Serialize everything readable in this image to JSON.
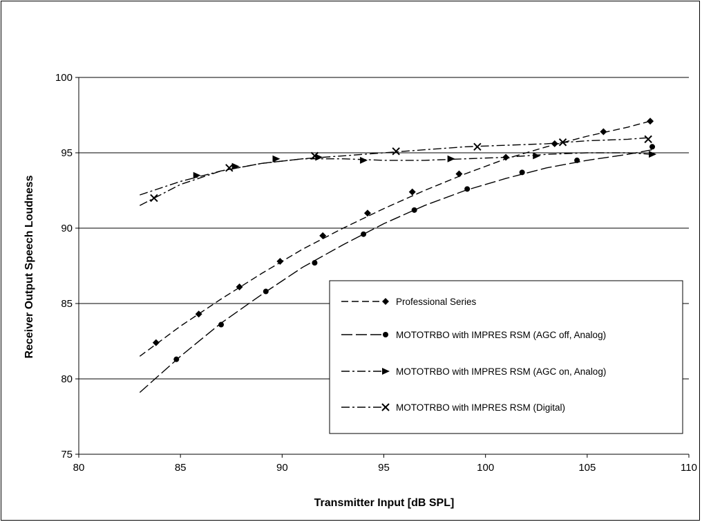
{
  "chart_data": {
    "type": "line",
    "title": "",
    "xlabel": "Transmitter Input [dB SPL]",
    "ylabel": "Receiver Output Speech Loudness",
    "xlim": [
      80,
      110
    ],
    "ylim": [
      75,
      100
    ],
    "xticks": [
      "80",
      "85",
      "90",
      "95",
      "100",
      "105",
      "110"
    ],
    "yticks": [
      "75",
      "80",
      "85",
      "90",
      "95",
      "100"
    ],
    "grid": "horizontal",
    "legend_position": "lower-right",
    "series": [
      {
        "name": "Professional Series",
        "marker": "diamond",
        "dash": "dashed",
        "points": [
          [
            83.8,
            82.4
          ],
          [
            85.9,
            84.3
          ],
          [
            87.9,
            86.1
          ],
          [
            89.9,
            87.8
          ],
          [
            92.0,
            89.5
          ],
          [
            94.2,
            91.0
          ],
          [
            96.4,
            92.4
          ],
          [
            98.7,
            93.6
          ],
          [
            101.0,
            94.7
          ],
          [
            103.4,
            95.6
          ],
          [
            105.8,
            96.4
          ],
          [
            108.1,
            97.1
          ]
        ],
        "fit": [
          [
            83.0,
            81.5
          ],
          [
            85.0,
            83.5
          ],
          [
            87.0,
            85.3
          ],
          [
            89.0,
            87.0
          ],
          [
            91.0,
            88.6
          ],
          [
            93.0,
            90.0
          ],
          [
            95.0,
            91.3
          ],
          [
            97.0,
            92.5
          ],
          [
            99.0,
            93.6
          ],
          [
            101.0,
            94.6
          ],
          [
            103.0,
            95.4
          ],
          [
            105.0,
            96.1
          ],
          [
            107.0,
            96.7
          ],
          [
            108.1,
            97.1
          ]
        ]
      },
      {
        "name": "MOTOTRBO with IMPRES RSM (AGC off, Analog)",
        "marker": "circle",
        "dash": "long-dash",
        "points": [
          [
            84.8,
            81.3
          ],
          [
            87.0,
            83.6
          ],
          [
            89.2,
            85.8
          ],
          [
            91.6,
            87.7
          ],
          [
            94.0,
            89.6
          ],
          [
            96.5,
            91.2
          ],
          [
            99.1,
            92.6
          ],
          [
            101.8,
            93.7
          ],
          [
            104.5,
            94.5
          ],
          [
            108.2,
            95.4
          ]
        ],
        "fit": [
          [
            83.0,
            79.1
          ],
          [
            85.0,
            81.5
          ],
          [
            87.0,
            83.7
          ],
          [
            89.0,
            85.6
          ],
          [
            91.0,
            87.4
          ],
          [
            93.0,
            88.9
          ],
          [
            95.0,
            90.3
          ],
          [
            97.0,
            91.5
          ],
          [
            99.0,
            92.5
          ],
          [
            101.0,
            93.3
          ],
          [
            103.0,
            94.0
          ],
          [
            105.0,
            94.5
          ],
          [
            107.0,
            94.9
          ],
          [
            108.2,
            95.2
          ]
        ]
      },
      {
        "name": "MOTOTRBO with IMPRES RSM (AGC on, Analog)",
        "marker": "triangle-right",
        "dash": "dash-dot",
        "points": [
          [
            85.8,
            93.5
          ],
          [
            87.7,
            94.1
          ],
          [
            89.7,
            94.6
          ],
          [
            91.8,
            94.7
          ],
          [
            94.0,
            94.5
          ],
          [
            98.3,
            94.6
          ],
          [
            102.5,
            94.8
          ],
          [
            108.2,
            94.9
          ]
        ],
        "fit": [
          [
            83.0,
            92.2
          ],
          [
            85.0,
            93.1
          ],
          [
            87.0,
            93.8
          ],
          [
            89.0,
            94.3
          ],
          [
            91.0,
            94.6
          ],
          [
            93.0,
            94.6
          ],
          [
            95.0,
            94.5
          ],
          [
            97.0,
            94.5
          ],
          [
            99.0,
            94.6
          ],
          [
            101.0,
            94.7
          ],
          [
            103.0,
            94.9
          ],
          [
            105.0,
            95.0
          ],
          [
            107.0,
            95.0
          ],
          [
            108.2,
            94.9
          ]
        ]
      },
      {
        "name": "MOTOTRBO with IMPRES RSM (Digital)",
        "marker": "x",
        "dash": "dash-dot",
        "points": [
          [
            83.7,
            92.0
          ],
          [
            87.4,
            94.0
          ],
          [
            91.6,
            94.8
          ],
          [
            95.6,
            95.1
          ],
          [
            99.6,
            95.4
          ],
          [
            103.8,
            95.7
          ],
          [
            108.0,
            95.9
          ]
        ],
        "fit": [
          [
            83.0,
            91.5
          ],
          [
            85.0,
            92.9
          ],
          [
            87.0,
            93.8
          ],
          [
            89.0,
            94.3
          ],
          [
            91.0,
            94.6
          ],
          [
            93.0,
            94.8
          ],
          [
            95.0,
            95.0
          ],
          [
            97.0,
            95.2
          ],
          [
            99.0,
            95.4
          ],
          [
            101.0,
            95.5
          ],
          [
            103.0,
            95.6
          ],
          [
            105.0,
            95.8
          ],
          [
            107.0,
            95.9
          ],
          [
            108.0,
            96.0
          ]
        ]
      }
    ]
  }
}
